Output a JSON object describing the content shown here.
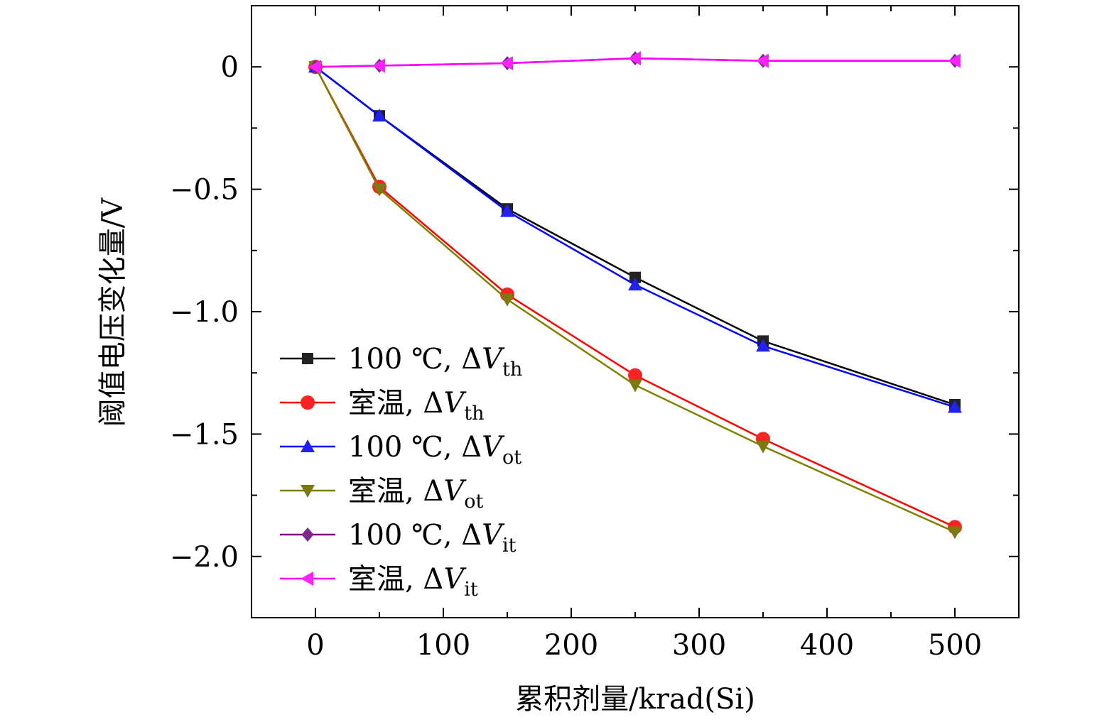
{
  "chart_data": {
    "type": "line",
    "title": "",
    "xlabel": "累积剂量/krad(Si)",
    "ylabel": "阈值电压变化量/V",
    "xlim": [
      -50,
      550
    ],
    "ylim": [
      -2.25,
      0.25
    ],
    "x_ticks": [
      0,
      100,
      200,
      300,
      400,
      500
    ],
    "x_tick_labels": [
      "0",
      "100",
      "200",
      "300",
      "400",
      "500"
    ],
    "y_ticks": [
      0,
      -0.5,
      -1.0,
      -1.5,
      -2.0
    ],
    "y_tick_labels": [
      "0",
      "−0.5",
      "−1.0",
      "−1.5",
      "−2.0"
    ],
    "x": [
      0,
      50,
      150,
      250,
      350,
      500
    ],
    "legend_position": "bottom-left",
    "series": [
      {
        "name": "100 ℃, ΔVth",
        "label_main": "100 ℃, Δ",
        "label_symbol": "V",
        "label_sub": "th",
        "color": "#000000",
        "marker": "square",
        "marker_color": "#222222",
        "values": [
          0,
          -0.2,
          -0.58,
          -0.86,
          -1.12,
          -1.38
        ]
      },
      {
        "name": "室温, ΔVth",
        "label_main": "室温, Δ",
        "label_symbol": "V",
        "label_sub": "th",
        "color": "#ff0000",
        "marker": "circle",
        "marker_color": "#ff2222",
        "values": [
          0,
          -0.49,
          -0.93,
          -1.26,
          -1.52,
          -1.88
        ]
      },
      {
        "name": "100 ℃, ΔVot",
        "label_main": "100 ℃, Δ",
        "label_symbol": "V",
        "label_sub": "ot",
        "color": "#0000ff",
        "marker": "triangle-up",
        "marker_color": "#2222ee",
        "values": [
          0,
          -0.2,
          -0.59,
          -0.89,
          -1.14,
          -1.39
        ]
      },
      {
        "name": "室温, ΔVot",
        "label_main": "室温, Δ",
        "label_symbol": "V",
        "label_sub": "ot",
        "color": "#808000",
        "marker": "triangle-down",
        "marker_color": "#7a7a10",
        "values": [
          0,
          -0.5,
          -0.95,
          -1.3,
          -1.55,
          -1.9
        ]
      },
      {
        "name": "100 ℃, ΔVit",
        "label_main": "100 ℃, Δ",
        "label_symbol": "V",
        "label_sub": "it",
        "color": "#800080",
        "marker": "diamond",
        "marker_color": "#7b2a8c",
        "values": [
          0,
          0.005,
          0.015,
          0.035,
          0.025,
          0.025
        ]
      },
      {
        "name": "室温, ΔVit",
        "label_main": "室温, Δ",
        "label_symbol": "V",
        "label_sub": "it",
        "color": "#ff00ff",
        "marker": "triangle-left",
        "marker_color": "#ff22ff",
        "values": [
          0,
          0.005,
          0.015,
          0.035,
          0.025,
          0.025
        ]
      }
    ]
  }
}
